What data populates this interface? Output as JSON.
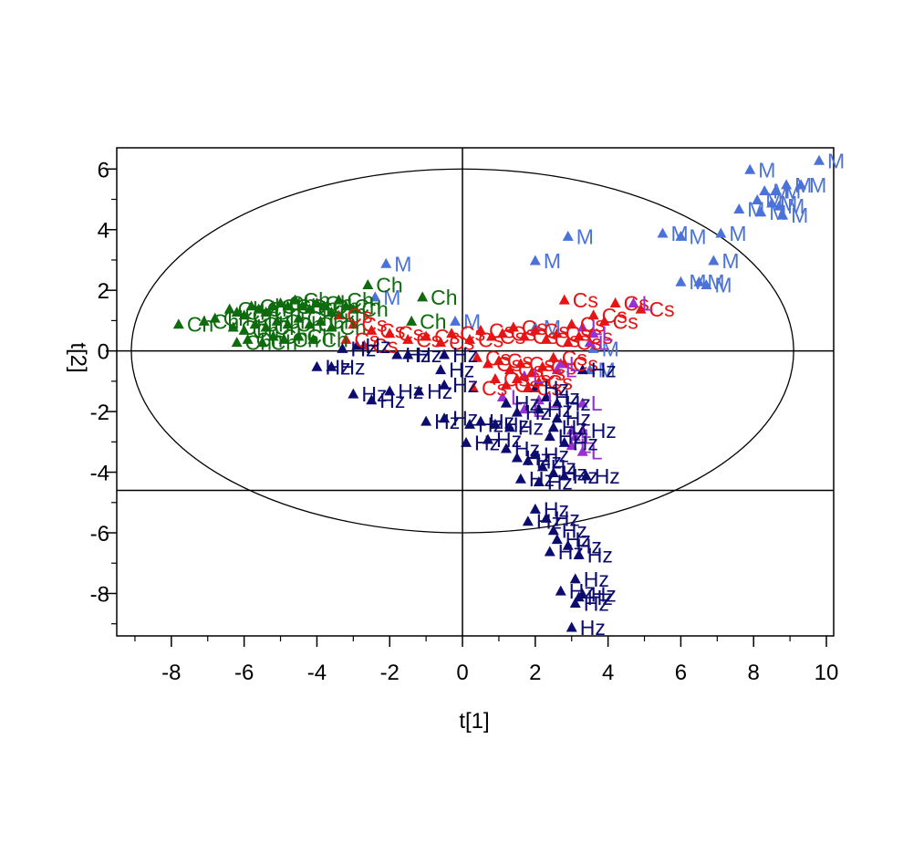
{
  "chart_data": {
    "type": "scatter",
    "title": "",
    "xlabel": "t[1]",
    "ylabel": "t[2]",
    "xlim": [
      -9.5,
      10.2
    ],
    "ylim": [
      -9.4,
      6.7
    ],
    "xticks": [
      -8,
      -6,
      -4,
      -2,
      0,
      2,
      4,
      6,
      8,
      10
    ],
    "yticks": [
      6,
      4,
      2,
      0,
      -2,
      -4,
      -6,
      -8
    ],
    "x_tick_labels": [
      "-8",
      "-6",
      "-4",
      "-2",
      "0",
      "2",
      "4",
      "6",
      "8",
      "10"
    ],
    "y_tick_labels": [
      "6",
      "4",
      "2",
      "0",
      "-2",
      "-4",
      "-6",
      "-8"
    ],
    "grid": false,
    "legend": "none",
    "marker": "triangle",
    "ellipse": {
      "cx": 0,
      "cy": 0,
      "rx": 9.1,
      "ry": 6.0
    },
    "reference_lines": {
      "vertical_x": 0,
      "horizontal_y": [
        0,
        -4.6
      ]
    },
    "series": [
      {
        "label": "M",
        "color": "#4a72d8",
        "points": [
          [
            9.8,
            6.3
          ],
          [
            7.9,
            6.0
          ],
          [
            8.9,
            5.5
          ],
          [
            9.3,
            5.5
          ],
          [
            8.6,
            5.3
          ],
          [
            8.3,
            5.3
          ],
          [
            8.1,
            5.0
          ],
          [
            8.5,
            4.9
          ],
          [
            8.7,
            4.8
          ],
          [
            7.6,
            4.7
          ],
          [
            8.2,
            4.6
          ],
          [
            8.8,
            4.5
          ],
          [
            5.5,
            3.9
          ],
          [
            6.0,
            3.8
          ],
          [
            7.1,
            3.9
          ],
          [
            2.9,
            3.8
          ],
          [
            6.9,
            3.0
          ],
          [
            6.0,
            2.3
          ],
          [
            6.5,
            2.3
          ],
          [
            6.7,
            2.2
          ],
          [
            2.0,
            3.0
          ],
          [
            -2.1,
            2.9
          ],
          [
            -2.4,
            1.8
          ],
          [
            -0.2,
            1.0
          ],
          [
            2.0,
            0.8
          ],
          [
            3.6,
            0.1
          ],
          [
            3.5,
            -0.6
          ]
        ]
      },
      {
        "label": "Ch",
        "color": "#0e6b0e",
        "points": [
          [
            -2.6,
            2.2
          ],
          [
            -1.1,
            1.8
          ],
          [
            -7.8,
            0.9
          ],
          [
            -7.1,
            1.0
          ],
          [
            -6.8,
            1.1
          ],
          [
            -6.4,
            1.4
          ],
          [
            -6.2,
            1.3
          ],
          [
            -6.0,
            1.2
          ],
          [
            -5.8,
            1.5
          ],
          [
            -5.6,
            1.4
          ],
          [
            -5.4,
            1.3
          ],
          [
            -5.2,
            1.5
          ],
          [
            -5.0,
            1.6
          ],
          [
            -4.8,
            1.5
          ],
          [
            -4.6,
            1.7
          ],
          [
            -4.4,
            1.5
          ],
          [
            -4.2,
            1.4
          ],
          [
            -4.0,
            1.6
          ],
          [
            -3.8,
            1.5
          ],
          [
            -3.6,
            1.3
          ],
          [
            -3.4,
            1.7
          ],
          [
            -3.2,
            1.5
          ],
          [
            -3.0,
            1.4
          ],
          [
            -6.3,
            0.8
          ],
          [
            -6.0,
            0.7
          ],
          [
            -5.7,
            0.9
          ],
          [
            -5.4,
            0.8
          ],
          [
            -5.1,
            1.0
          ],
          [
            -4.8,
            0.9
          ],
          [
            -4.5,
            1.1
          ],
          [
            -4.2,
            0.9
          ],
          [
            -3.9,
            1.0
          ],
          [
            -3.6,
            0.8
          ],
          [
            -6.2,
            0.3
          ],
          [
            -5.9,
            0.4
          ],
          [
            -5.5,
            0.3
          ],
          [
            -5.2,
            0.5
          ],
          [
            -4.9,
            0.4
          ],
          [
            -4.5,
            0.5
          ],
          [
            -4.1,
            0.4
          ],
          [
            -1.4,
            1.0
          ]
        ]
      },
      {
        "label": "Cs",
        "color": "#e61414",
        "points": [
          [
            2.8,
            1.7
          ],
          [
            4.2,
            1.6
          ],
          [
            4.9,
            1.4
          ],
          [
            3.6,
            1.2
          ],
          [
            3.9,
            1.0
          ],
          [
            3.0,
            0.9
          ],
          [
            -3.4,
            1.2
          ],
          [
            -3.0,
            0.9
          ],
          [
            -2.5,
            0.7
          ],
          [
            -2.0,
            0.6
          ],
          [
            -1.5,
            0.4
          ],
          [
            -1.0,
            0.5
          ],
          [
            -0.6,
            0.3
          ],
          [
            -0.3,
            0.6
          ],
          [
            0.2,
            0.4
          ],
          [
            0.5,
            0.7
          ],
          [
            0.8,
            0.5
          ],
          [
            1.1,
            0.6
          ],
          [
            1.4,
            0.8
          ],
          [
            1.7,
            0.5
          ],
          [
            2.0,
            0.7
          ],
          [
            2.3,
            0.4
          ],
          [
            2.6,
            0.6
          ],
          [
            2.9,
            0.3
          ],
          [
            3.2,
            0.5
          ],
          [
            0.4,
            -0.2
          ],
          [
            0.7,
            -0.4
          ],
          [
            1.0,
            -0.3
          ],
          [
            1.3,
            -0.6
          ],
          [
            1.6,
            -0.4
          ],
          [
            1.9,
            -0.7
          ],
          [
            2.2,
            -0.5
          ],
          [
            2.5,
            -0.2
          ],
          [
            2.8,
            -0.4
          ],
          [
            0.9,
            -0.9
          ],
          [
            1.2,
            -1.1
          ],
          [
            1.5,
            -0.9
          ],
          [
            1.8,
            -1.2
          ],
          [
            2.1,
            -1.0
          ],
          [
            -2.7,
            0.2
          ],
          [
            -3.2,
            0.4
          ],
          [
            0.3,
            -1.2
          ]
        ]
      },
      {
        "label": "L",
        "color": "#9a30d2",
        "points": [
          [
            4.7,
            1.6
          ],
          [
            3.3,
            0.8
          ],
          [
            3.6,
            0.6
          ],
          [
            3.5,
            0.3
          ],
          [
            2.7,
            -0.4
          ],
          [
            2.6,
            -0.6
          ],
          [
            3.3,
            -1.7
          ],
          [
            1.1,
            -1.5
          ],
          [
            1.7,
            -1.9
          ],
          [
            3.0,
            -2.6
          ],
          [
            3.1,
            -2.8
          ],
          [
            3.0,
            -3.1
          ],
          [
            3.3,
            -3.3
          ],
          [
            1.7,
            -0.8
          ],
          [
            2.1,
            -1.6
          ]
        ]
      },
      {
        "label": "Hz",
        "color": "#0c0c6e",
        "points": [
          [
            -2.9,
            0.2
          ],
          [
            -3.3,
            0.1
          ],
          [
            -1.5,
            -0.1
          ],
          [
            -0.5,
            -0.1
          ],
          [
            -4.0,
            -0.5
          ],
          [
            -3.6,
            -0.5
          ],
          [
            -0.6,
            -0.6
          ],
          [
            -3.0,
            -1.4
          ],
          [
            -2.5,
            -1.6
          ],
          [
            -2.0,
            -1.3
          ],
          [
            -1.2,
            -1.3
          ],
          [
            -0.5,
            -1.1
          ],
          [
            -1.0,
            -2.3
          ],
          [
            -0.5,
            -2.2
          ],
          [
            0.2,
            -2.4
          ],
          [
            0.5,
            -2.3
          ],
          [
            0.9,
            -2.4
          ],
          [
            1.3,
            -2.5
          ],
          [
            0.1,
            -3.0
          ],
          [
            0.7,
            -2.9
          ],
          [
            1.2,
            -3.2
          ],
          [
            1.5,
            -3.5
          ],
          [
            2.0,
            -3.4
          ],
          [
            1.8,
            -3.6
          ],
          [
            2.2,
            -3.8
          ],
          [
            2.5,
            -4.0
          ],
          [
            2.8,
            -4.1
          ],
          [
            3.4,
            -4.1
          ],
          [
            1.6,
            -4.2
          ],
          [
            2.1,
            -4.3
          ],
          [
            2.5,
            -2.5
          ],
          [
            2.4,
            -2.8
          ],
          [
            2.8,
            -3.0
          ],
          [
            3.3,
            -2.6
          ],
          [
            2.0,
            -1.2
          ],
          [
            2.3,
            -1.5
          ],
          [
            2.6,
            -1.7
          ],
          [
            2.1,
            -1.9
          ],
          [
            2.6,
            -2.2
          ],
          [
            3.3,
            -0.6
          ],
          [
            2.0,
            -5.2
          ],
          [
            1.8,
            -5.6
          ],
          [
            2.3,
            -5.5
          ],
          [
            2.5,
            -5.9
          ],
          [
            2.6,
            -6.2
          ],
          [
            2.4,
            -6.6
          ],
          [
            2.9,
            -6.4
          ],
          [
            3.2,
            -6.7
          ],
          [
            3.1,
            -7.5
          ],
          [
            2.7,
            -7.9
          ],
          [
            3.3,
            -8.0
          ],
          [
            3.1,
            -8.3
          ],
          [
            3.2,
            -8.1
          ],
          [
            3.0,
            -9.1
          ],
          [
            1.2,
            -1.7
          ],
          [
            1.5,
            -2.0
          ],
          [
            -1.8,
            -0.1
          ]
        ]
      }
    ]
  }
}
